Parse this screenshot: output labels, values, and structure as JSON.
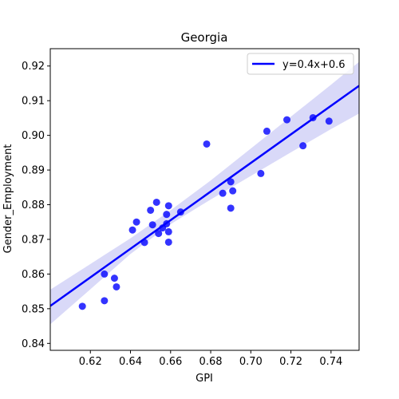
{
  "chart_data": {
    "type": "scatter",
    "title": "Georgia",
    "xlabel": "GPI",
    "ylabel": "Gender_Employment",
    "xlim": [
      0.6,
      0.754
    ],
    "ylim": [
      0.838,
      0.925
    ],
    "xticks": [
      "0.62",
      "0.64",
      "0.66",
      "0.68",
      "0.70",
      "0.72",
      "0.74"
    ],
    "xtick_values": [
      0.62,
      0.64,
      0.66,
      0.68,
      0.7,
      0.72,
      0.74
    ],
    "yticks": [
      "0.84",
      "0.85",
      "0.86",
      "0.87",
      "0.88",
      "0.89",
      "0.90",
      "0.91",
      "0.92"
    ],
    "ytick_values": [
      0.84,
      0.85,
      0.86,
      0.87,
      0.88,
      0.89,
      0.9,
      0.91,
      0.92
    ],
    "legend": {
      "label": "y=0.4x+0.6",
      "placement": "top-right"
    },
    "regression": {
      "x": [
        0.6,
        0.754
      ],
      "y": [
        0.8508,
        0.9143
      ]
    },
    "confidence_band": {
      "x": [
        0.6,
        0.62,
        0.64,
        0.66,
        0.68,
        0.7,
        0.72,
        0.74,
        0.754
      ],
      "lower": [
        0.8455,
        0.8556,
        0.8658,
        0.8744,
        0.8815,
        0.8883,
        0.8951,
        0.9018,
        0.9063
      ],
      "upper": [
        0.8555,
        0.8629,
        0.8703,
        0.8784,
        0.887,
        0.8962,
        0.9054,
        0.9146,
        0.9212
      ]
    },
    "points": [
      {
        "x": 0.616,
        "y": 0.8507
      },
      {
        "x": 0.627,
        "y": 0.86
      },
      {
        "x": 0.627,
        "y": 0.8523
      },
      {
        "x": 0.632,
        "y": 0.8588
      },
      {
        "x": 0.633,
        "y": 0.8563
      },
      {
        "x": 0.641,
        "y": 0.8727
      },
      {
        "x": 0.643,
        "y": 0.875
      },
      {
        "x": 0.647,
        "y": 0.8691
      },
      {
        "x": 0.65,
        "y": 0.8784
      },
      {
        "x": 0.651,
        "y": 0.8742
      },
      {
        "x": 0.653,
        "y": 0.8807
      },
      {
        "x": 0.654,
        "y": 0.8717
      },
      {
        "x": 0.656,
        "y": 0.8733
      },
      {
        "x": 0.658,
        "y": 0.8772
      },
      {
        "x": 0.658,
        "y": 0.8745
      },
      {
        "x": 0.659,
        "y": 0.8797
      },
      {
        "x": 0.659,
        "y": 0.8722
      },
      {
        "x": 0.659,
        "y": 0.8692
      },
      {
        "x": 0.665,
        "y": 0.8779
      },
      {
        "x": 0.678,
        "y": 0.8975
      },
      {
        "x": 0.686,
        "y": 0.8833
      },
      {
        "x": 0.69,
        "y": 0.8866
      },
      {
        "x": 0.691,
        "y": 0.884
      },
      {
        "x": 0.69,
        "y": 0.879
      },
      {
        "x": 0.705,
        "y": 0.889
      },
      {
        "x": 0.708,
        "y": 0.9012
      },
      {
        "x": 0.718,
        "y": 0.9045
      },
      {
        "x": 0.726,
        "y": 0.897
      },
      {
        "x": 0.731,
        "y": 0.9051
      },
      {
        "x": 0.739,
        "y": 0.9041
      }
    ],
    "colors": {
      "points": "#0000ff",
      "line": "#0000ff",
      "band": "#ccccf5"
    },
    "grid": false
  }
}
